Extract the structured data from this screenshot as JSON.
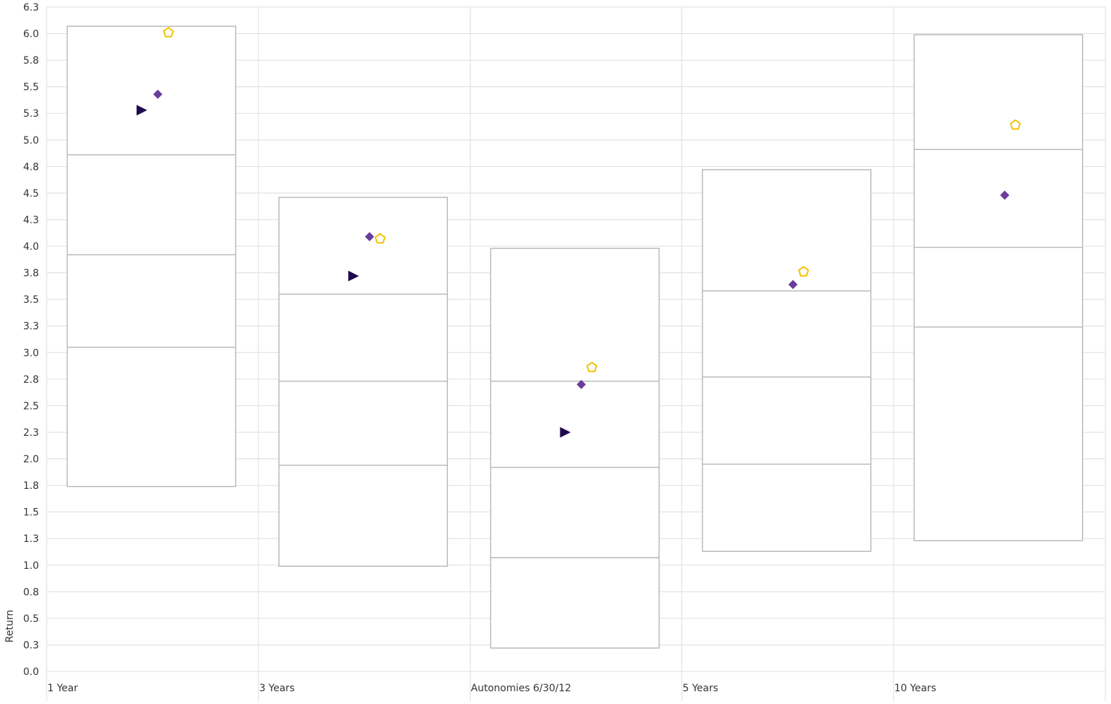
{
  "chart_data": {
    "type": "box",
    "ylabel": "Return",
    "xlabel": "",
    "ylim": [
      0,
      6.25
    ],
    "yticks": [
      "0.0",
      "0.3",
      "0.5",
      "0.8",
      "1.0",
      "1.3",
      "1.5",
      "1.8",
      "2.0",
      "2.3",
      "2.5",
      "2.8",
      "3.0",
      "3.3",
      "3.5",
      "3.8",
      "4.0",
      "4.3",
      "4.5",
      "4.8",
      "5.0",
      "5.3",
      "5.5",
      "5.8",
      "6.0",
      "6.3"
    ],
    "grid": true,
    "categories": [
      "1 Year",
      "3 Years",
      "Autonomies 6/30/12",
      "5 Years",
      "10 Years"
    ],
    "boxes": [
      {
        "category": "1 Year",
        "low": 1.74,
        "q1": 3.05,
        "median": 3.92,
        "q3": 4.86,
        "high": 6.07
      },
      {
        "category": "3 Years",
        "low": 0.99,
        "q1": 1.94,
        "median": 2.73,
        "q3": 3.55,
        "high": 4.46
      },
      {
        "category": "Autonomies 6/30/12",
        "low": 0.22,
        "q1": 1.07,
        "median": 1.92,
        "q3": 2.73,
        "high": 3.98
      },
      {
        "category": "5 Years",
        "low": 1.13,
        "q1": 1.95,
        "median": 2.77,
        "q3": 3.58,
        "high": 4.72
      },
      {
        "category": "10 Years",
        "low": 1.23,
        "q1": 3.24,
        "median": 3.99,
        "q3": 4.91,
        "high": 5.99
      }
    ],
    "markers": [
      {
        "shape": "triangle",
        "color": "#1e0a4c",
        "points": [
          {
            "category": "1 Year",
            "y": 5.28
          },
          {
            "category": "3 Years",
            "y": 3.72
          },
          {
            "category": "Autonomies 6/30/12",
            "y": 2.25
          }
        ]
      },
      {
        "shape": "diamond",
        "color": "#6a3d9a",
        "points": [
          {
            "category": "1 Year",
            "y": 5.43
          },
          {
            "category": "3 Years",
            "y": 4.09
          },
          {
            "category": "Autonomies 6/30/12",
            "y": 2.7
          },
          {
            "category": "5 Years",
            "y": 3.64
          },
          {
            "category": "10 Years",
            "y": 4.48
          }
        ]
      },
      {
        "shape": "pentagon",
        "color": "#f2c200",
        "points": [
          {
            "category": "1 Year",
            "y": 6.01
          },
          {
            "category": "3 Years",
            "y": 4.07
          },
          {
            "category": "Autonomies 6/30/12",
            "y": 2.86
          },
          {
            "category": "5 Years",
            "y": 3.76
          },
          {
            "category": "10 Years",
            "y": 5.14
          }
        ]
      }
    ]
  }
}
